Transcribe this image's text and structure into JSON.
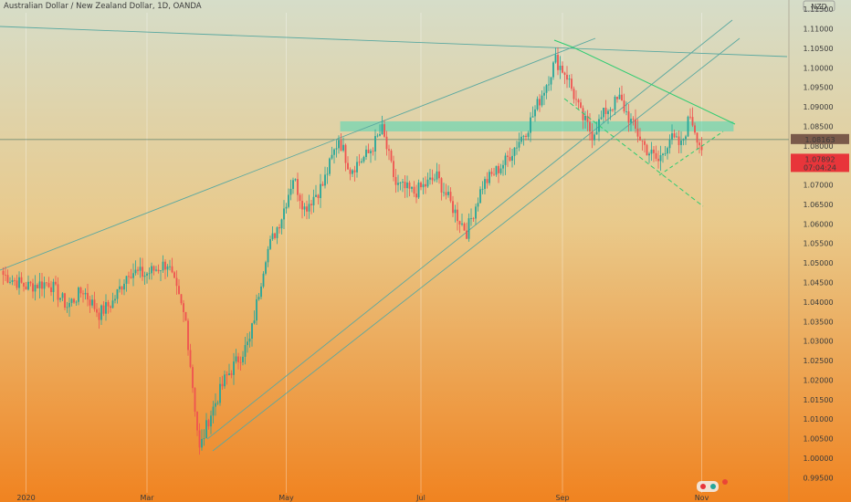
{
  "header": {
    "title": "Australian Dollar / New Zealand Dollar, 1D, OANDA",
    "currency_badge": "NZD"
  },
  "colors": {
    "bg_top": "#d6ddc9",
    "bg_bottom": "#f08320",
    "up": "#26a69a",
    "down": "#ef5350",
    "trendline": "#5aa8a0",
    "pattern": "#2ecc71",
    "zone": "#4dd8b8"
  },
  "chart_data": {
    "type": "candlestick",
    "title": "Australian Dollar / New Zealand Dollar, 1D, OANDA",
    "ylim": [
      0.9925,
      1.1155
    ],
    "y_ticks": [
      1.115,
      1.11,
      1.105,
      1.1,
      1.095,
      1.09,
      1.085,
      1.08,
      1.075,
      1.07,
      1.065,
      1.06,
      1.055,
      1.05,
      1.045,
      1.04,
      1.035,
      1.03,
      1.025,
      1.02,
      1.015,
      1.01,
      1.005,
      1.0,
      0.995
    ],
    "y_tick_labels": [
      "1.11500",
      "1.11000",
      "1.10500",
      "1.10000",
      "1.09500",
      "1.09000",
      "1.08500",
      "1.08000",
      "1.07500",
      "1.07000",
      "1.06500",
      "1.06000",
      "1.05500",
      "1.05000",
      "1.04500",
      "1.04000",
      "1.03500",
      "1.03000",
      "1.02500",
      "1.02000",
      "1.01500",
      "1.01000",
      "1.00500",
      "1.00000",
      "0.99500"
    ],
    "x_ticks": [
      {
        "label": "2020",
        "day": 10
      },
      {
        "label": "Mar",
        "day": 63
      },
      {
        "label": "May",
        "day": 124
      },
      {
        "label": "Jul",
        "day": 183
      },
      {
        "label": "Sep",
        "day": 245
      },
      {
        "label": "Nov",
        "day": 306
      }
    ],
    "price_labels": [
      {
        "value": 1.08163,
        "text": "1.08163",
        "color": "#7a5a4a"
      },
      {
        "value": 1.07892,
        "text": "1.07892",
        "color": "#e8353a"
      },
      {
        "value": 1.07892,
        "text": "07:04:24",
        "color": "#e8353a"
      }
    ],
    "grid": false,
    "key_points": [
      {
        "day": 0,
        "price": 1.047
      },
      {
        "day": 10,
        "price": 1.044
      },
      {
        "day": 20,
        "price": 1.045
      },
      {
        "day": 28,
        "price": 1.039
      },
      {
        "day": 35,
        "price": 1.043
      },
      {
        "day": 42,
        "price": 1.037
      },
      {
        "day": 48,
        "price": 1.04
      },
      {
        "day": 55,
        "price": 1.048
      },
      {
        "day": 62,
        "price": 1.047
      },
      {
        "day": 72,
        "price": 1.05
      },
      {
        "day": 80,
        "price": 1.035
      },
      {
        "day": 86,
        "price": 1.002
      },
      {
        "day": 90,
        "price": 1.01
      },
      {
        "day": 97,
        "price": 1.02
      },
      {
        "day": 108,
        "price": 1.03
      },
      {
        "day": 115,
        "price": 1.052
      },
      {
        "day": 122,
        "price": 1.062
      },
      {
        "day": 127,
        "price": 1.072
      },
      {
        "day": 132,
        "price": 1.064
      },
      {
        "day": 140,
        "price": 1.07
      },
      {
        "day": 147,
        "price": 1.082
      },
      {
        "day": 152,
        "price": 1.074
      },
      {
        "day": 160,
        "price": 1.078
      },
      {
        "day": 166,
        "price": 1.084
      },
      {
        "day": 172,
        "price": 1.07
      },
      {
        "day": 180,
        "price": 1.068
      },
      {
        "day": 190,
        "price": 1.072
      },
      {
        "day": 198,
        "price": 1.063
      },
      {
        "day": 203,
        "price": 1.058
      },
      {
        "day": 210,
        "price": 1.07
      },
      {
        "day": 220,
        "price": 1.076
      },
      {
        "day": 230,
        "price": 1.085
      },
      {
        "day": 238,
        "price": 1.096
      },
      {
        "day": 242,
        "price": 1.102
      },
      {
        "day": 247,
        "price": 1.098
      },
      {
        "day": 253,
        "price": 1.088
      },
      {
        "day": 258,
        "price": 1.083
      },
      {
        "day": 264,
        "price": 1.089
      },
      {
        "day": 270,
        "price": 1.092
      },
      {
        "day": 276,
        "price": 1.085
      },
      {
        "day": 282,
        "price": 1.079
      },
      {
        "day": 287,
        "price": 1.076
      },
      {
        "day": 292,
        "price": 1.082
      },
      {
        "day": 297,
        "price": 1.08
      },
      {
        "day": 301,
        "price": 1.088
      },
      {
        "day": 306,
        "price": 1.0789
      }
    ],
    "annotations": {
      "resistance_zone": [
        1.0838,
        1.0862
      ],
      "horizontal_line": 1.08163
    }
  }
}
